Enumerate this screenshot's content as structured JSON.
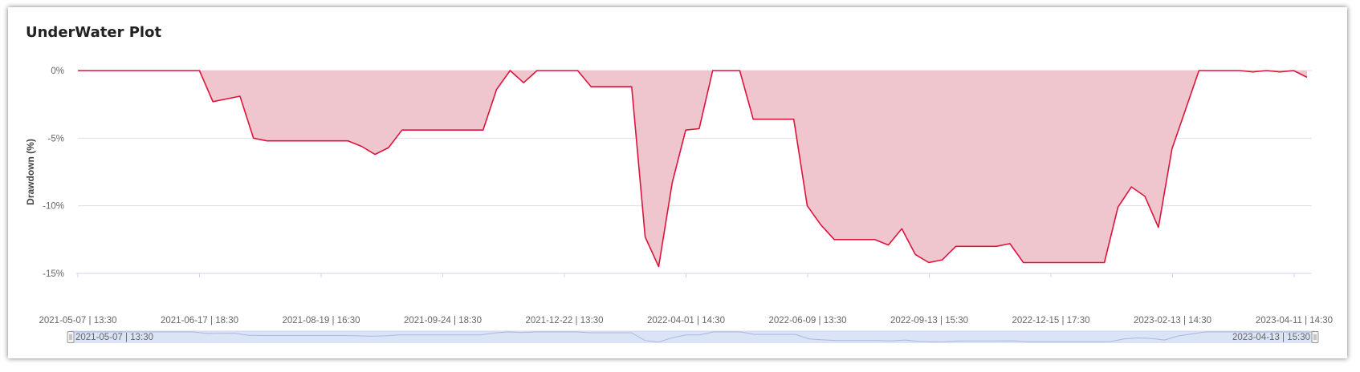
{
  "chart_data": {
    "type": "area",
    "title": "UnderWater Plot",
    "ylabel": "Drawdown (%)",
    "xlabel": "",
    "ylim": [
      -15,
      0
    ],
    "yticks": [
      0,
      -5,
      -10,
      -15
    ],
    "ytick_labels": [
      "0%",
      "-5%",
      "-10%",
      "-15%"
    ],
    "xtick_labels": [
      "2021-05-07 | 13:30",
      "2021-06-17 | 18:30",
      "2021-08-19 | 16:30",
      "2021-09-24 | 18:30",
      "2021-12-22 | 13:30",
      "2022-04-01 | 14:30",
      "2022-06-09 | 13:30",
      "2022-09-13 | 15:30",
      "2022-12-15 | 17:30",
      "2023-02-13 | 14:30",
      "2023-04-11 | 14:30"
    ],
    "grid": true,
    "colors": {
      "line": "#dc143c",
      "fill": "#efc6ce",
      "grid": "#e0e0e0",
      "zoom_fill": "#dbe4f6",
      "zoom_line": "#a9b9dd"
    },
    "series": [
      {
        "values": [
          0,
          0,
          0,
          0,
          0,
          0,
          0,
          0,
          0,
          0,
          -2.3,
          -2.1,
          -1.9,
          -5.0,
          -5.2,
          -5.2,
          -5.2,
          -5.2,
          -5.2,
          -5.2,
          -5.2,
          -5.6,
          -6.2,
          -5.7,
          -4.4,
          -4.4,
          -4.4,
          -4.4,
          -4.4,
          -4.4,
          -4.4,
          -1.4,
          0,
          -0.9,
          0,
          0,
          0,
          0,
          -1.2,
          -1.2,
          -1.2,
          -1.2,
          -12.3,
          -14.5,
          -8.3,
          -4.4,
          -4.3,
          0,
          0,
          0,
          -3.6,
          -3.6,
          -3.6,
          -3.6,
          -10.0,
          -11.4,
          -12.5,
          -12.5,
          -12.5,
          -12.5,
          -12.9,
          -11.7,
          -13.6,
          -14.2,
          -14.0,
          -13.0,
          -13.0,
          -13.0,
          -13.0,
          -12.8,
          -14.2,
          -14.2,
          -14.2,
          -14.2,
          -14.2,
          -14.2,
          -14.2,
          -10.1,
          -8.6,
          -9.3,
          -11.6,
          -5.8,
          -2.9,
          0,
          0,
          0,
          0,
          -0.1,
          0,
          -0.1,
          0,
          -0.5
        ]
      }
    ],
    "zoom_range_labels": [
      "2021-05-07 | 13:30",
      "2023-04-13 | 15:30"
    ]
  }
}
